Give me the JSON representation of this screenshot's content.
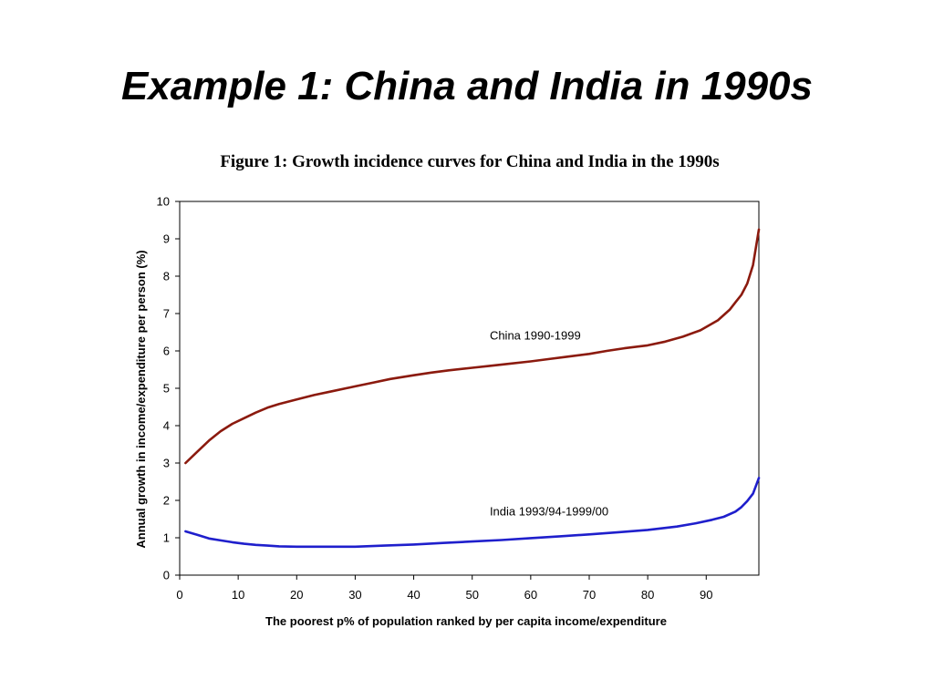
{
  "slide": {
    "title": "Example 1: China and India in 1990s"
  },
  "chart_data": {
    "type": "line",
    "title": "Figure 1: Growth incidence curves for China and India in the 1990s",
    "xlabel": "The poorest p% of population ranked by per capita income/expenditure",
    "ylabel": "Annual growth in income/expenditure per person (%)",
    "xlim": [
      0,
      99
    ],
    "ylim": [
      0,
      10
    ],
    "xticks": [
      0,
      10,
      20,
      30,
      40,
      50,
      60,
      70,
      80,
      90
    ],
    "yticks": [
      0,
      1,
      2,
      3,
      4,
      5,
      6,
      7,
      8,
      9,
      10
    ],
    "grid": false,
    "legend": "none",
    "series": [
      {
        "name": "China 1990-1999",
        "color": "#8B1A0E",
        "x": [
          1,
          3,
          5,
          7,
          9,
          11,
          13,
          15,
          17,
          20,
          23,
          26,
          30,
          33,
          36,
          40,
          43,
          46,
          50,
          53,
          56,
          60,
          63,
          66,
          70,
          73,
          76,
          80,
          83,
          86,
          89,
          92,
          94,
          95,
          96,
          97,
          98,
          99
        ],
        "y": [
          3.0,
          3.3,
          3.6,
          3.85,
          4.05,
          4.2,
          4.35,
          4.48,
          4.58,
          4.7,
          4.82,
          4.92,
          5.05,
          5.15,
          5.25,
          5.35,
          5.42,
          5.48,
          5.55,
          5.6,
          5.65,
          5.72,
          5.78,
          5.84,
          5.92,
          6.0,
          6.07,
          6.15,
          6.25,
          6.38,
          6.55,
          6.82,
          7.1,
          7.3,
          7.5,
          7.8,
          8.3,
          9.25
        ]
      },
      {
        "name": "India 1993/94-1999/00",
        "color": "#1F1FCC",
        "x": [
          1,
          3,
          5,
          7,
          9,
          11,
          13,
          15,
          17,
          20,
          25,
          30,
          35,
          40,
          45,
          50,
          55,
          60,
          65,
          70,
          75,
          80,
          85,
          88,
          91,
          93,
          95,
          96,
          97,
          98,
          99
        ],
        "y": [
          1.17,
          1.08,
          0.98,
          0.93,
          0.88,
          0.84,
          0.81,
          0.79,
          0.77,
          0.76,
          0.76,
          0.76,
          0.79,
          0.82,
          0.86,
          0.9,
          0.94,
          0.99,
          1.04,
          1.09,
          1.15,
          1.21,
          1.3,
          1.38,
          1.48,
          1.56,
          1.7,
          1.82,
          1.98,
          2.18,
          2.6
        ]
      }
    ],
    "annotations": [
      {
        "text": "China 1990-1999",
        "x": 53,
        "y": 6.3
      },
      {
        "text": "India 1993/94-1999/00",
        "x": 53,
        "y": 1.6
      }
    ]
  }
}
